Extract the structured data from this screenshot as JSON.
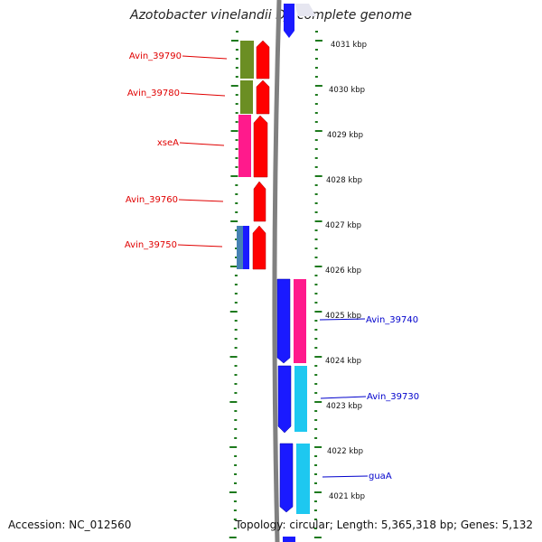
{
  "title": "Azotobacter vinelandii DJ, complete genome",
  "footer": {
    "accession": "Accession: NC_012560",
    "info": "Topology: circular; Length: 5,365,318 bp; Genes: 5,132"
  },
  "colors": {
    "left_label": "#e00000",
    "right_label": "#0000cc",
    "tick": "#1e7a1e",
    "backbone": "#808080",
    "strand_minus": "#ff0000",
    "blue": "#1a1aff",
    "cyan": "#1ec8f0",
    "magenta": "#ff1a8c",
    "olive": "#6b8e23"
  },
  "kbp_labels": [
    "4031 kbp",
    "4030 kbp",
    "4029 kbp",
    "4028 kbp",
    "4027 kbp",
    "4026 kbp",
    "4025 kbp",
    "4024 kbp",
    "4023 kbp",
    "4022 kbp",
    "4021 kbp"
  ],
  "left_labels": [
    "Avin_39790",
    "Avin_39780",
    "xseA",
    "Avin_39760",
    "Avin_39750"
  ],
  "right_labels": [
    "Avin_39740",
    "Avin_39730",
    "guaA"
  ]
}
